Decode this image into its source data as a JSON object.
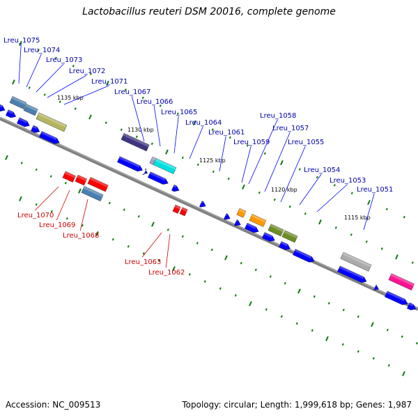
{
  "title": "Lactobacillus reuteri DSM 20016, complete genome",
  "footer": {
    "accession": "Accession: NC_009513",
    "topology": "Topology: circular; Length: 1,999,618 bp; Genes: 1,987"
  },
  "colors": {
    "backbone": "#808080",
    "cds": "#0000ff",
    "label_forward": "#0000aa",
    "label_reverse": "#cc0000",
    "tick": "#0a7a0a"
  },
  "kbp_marks": [
    "1135 kbp",
    "1130 kbp",
    "1125 kbp",
    "1120 kbp",
    "1115 kbp"
  ],
  "genes_forward": [
    {
      "name": "Lreu_1075",
      "color": "#4a7fb0"
    },
    {
      "name": "Lreu_1074",
      "color": "#4a7fb0"
    },
    {
      "name": "Lreu_1073",
      "color": "#b5b560"
    },
    {
      "name": "Lreu_1072",
      "color": "#b5b560"
    },
    {
      "name": "Lreu_1071",
      "color": "#b5b560"
    },
    {
      "name": "Lreu_1067",
      "color": "#3d3580"
    },
    {
      "name": "Lreu_1066",
      "color": "#a0a0c8"
    },
    {
      "name": "Lreu_1065",
      "color": "#00e0e0"
    },
    {
      "name": "Lreu_1064",
      "color": "#0000ff"
    },
    {
      "name": "Lreu_1061",
      "color": "#0000ff"
    },
    {
      "name": "Lreu_1059",
      "color": "#ff9900"
    },
    {
      "name": "Lreu_1058",
      "color": "#ff9900"
    },
    {
      "name": "Lreu_1057",
      "color": "#6b8e23"
    },
    {
      "name": "Lreu_1055",
      "color": "#6b8e23"
    },
    {
      "name": "Lreu_1054",
      "color": "#0000ff"
    },
    {
      "name": "Lreu_1053",
      "color": "#aaaaaa"
    },
    {
      "name": "Lreu_1051",
      "color": "#ff1493"
    }
  ],
  "genes_reverse": [
    {
      "name": "Lreu_1070",
      "color": "#ff0000"
    },
    {
      "name": "Lreu_1069",
      "color": "#ff0000"
    },
    {
      "name": "Lreu_1068",
      "color": "#4a7fb0"
    },
    {
      "name": "Lreu_1063",
      "color": "#ff0000"
    },
    {
      "name": "Lreu_1062",
      "color": "#ff0000"
    }
  ]
}
